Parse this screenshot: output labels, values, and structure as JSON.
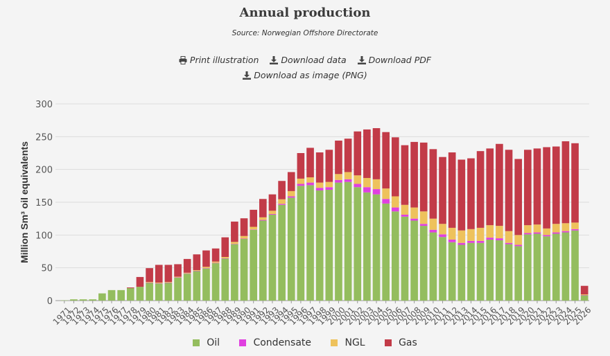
{
  "page": {
    "title": "Annual production",
    "subtitle": "Source: Norwegian Offshore Directorate"
  },
  "actions": [
    {
      "label": "Print illustration",
      "icon": "printer-icon"
    },
    {
      "label": "Download data",
      "icon": "download-icon"
    },
    {
      "label": "Download PDF",
      "icon": "download-icon"
    },
    {
      "label": "Download as image (PNG)",
      "icon": "download-icon"
    }
  ],
  "chart_data": {
    "type": "bar",
    "stacked": true,
    "ylabel": "Million Sm³ oil equivalents",
    "xlabel": "",
    "ylim": [
      0,
      300
    ],
    "yticks": [
      0,
      50,
      100,
      150,
      200,
      250,
      300
    ],
    "grid": true,
    "legend_position": "bottom",
    "categories": [
      "1971",
      "1972",
      "1973",
      "1974",
      "1975",
      "1976",
      "1977",
      "1978",
      "1979",
      "1980",
      "1981",
      "1982",
      "1983",
      "1984",
      "1985",
      "1986",
      "1987",
      "1988",
      "1989",
      "1990",
      "1991",
      "1992",
      "1993",
      "1994",
      "1995",
      "1996",
      "1997",
      "1998",
      "1999",
      "2000",
      "2001",
      "2002",
      "2003",
      "2004",
      "2005",
      "2006",
      "2007",
      "2008",
      "2009",
      "2010",
      "2011",
      "2012",
      "2013",
      "2014",
      "2015",
      "2016",
      "2017",
      "2018",
      "2019",
      "2020",
      "2021",
      "2022",
      "2023",
      "2024",
      "2025",
      "2026"
    ],
    "series": [
      {
        "name": "Oil",
        "color": "#94bd5e",
        "values": [
          0.4,
          1.9,
          1.9,
          1.9,
          11,
          16,
          16,
          19,
          21,
          27,
          26,
          27,
          35,
          41,
          45,
          49,
          57,
          64,
          86,
          94,
          108,
          122,
          131,
          146,
          157,
          175,
          176,
          168,
          169,
          180,
          181,
          173,
          165,
          162,
          148,
          136,
          128,
          122,
          114,
          104,
          97,
          89,
          85,
          88,
          88,
          93,
          92,
          86,
          83,
          101,
          102,
          98,
          102,
          104,
          107,
          8
        ]
      },
      {
        "name": "Condensate",
        "color": "#e040e0",
        "values": [
          0,
          0,
          0,
          0,
          0,
          0,
          0,
          0,
          0,
          0.5,
          0.5,
          0.5,
          0.5,
          0.5,
          0.5,
          0.5,
          0.5,
          0.5,
          0.5,
          0.5,
          0.5,
          1,
          1,
          1.5,
          2,
          3,
          4,
          4,
          4,
          4,
          4,
          5,
          8,
          8,
          7,
          6,
          3,
          3,
          3,
          4,
          4,
          4,
          3,
          3,
          3,
          3,
          3,
          2,
          2,
          2,
          2,
          2,
          2,
          2,
          2,
          0.5
        ]
      },
      {
        "name": "NGL",
        "color": "#eec25c",
        "values": [
          0,
          0,
          0,
          0,
          0,
          0,
          0,
          0,
          0,
          1,
          1,
          1,
          1,
          1,
          1,
          2,
          2,
          2,
          3,
          4,
          4,
          4,
          5,
          7,
          8,
          8,
          8,
          8,
          8,
          9,
          11,
          13,
          14,
          15,
          16,
          17,
          15,
          17,
          19,
          17,
          16,
          18,
          19,
          18,
          20,
          19,
          19,
          18,
          15,
          12,
          12,
          10,
          13,
          12,
          10,
          1
        ]
      },
      {
        "name": "Gas",
        "color": "#c23b48",
        "values": [
          0,
          0,
          0,
          0,
          0,
          0,
          0,
          1,
          15,
          21,
          27,
          26,
          19,
          21,
          24,
          25,
          20,
          30,
          31,
          27,
          26,
          28,
          25,
          28,
          29,
          39,
          45,
          46,
          49,
          51,
          51,
          67,
          74,
          78,
          86,
          90,
          91,
          100,
          105,
          106,
          102,
          115,
          108,
          108,
          117,
          117,
          125,
          124,
          116,
          115,
          116,
          124,
          118,
          125,
          121,
          13
        ]
      }
    ]
  }
}
